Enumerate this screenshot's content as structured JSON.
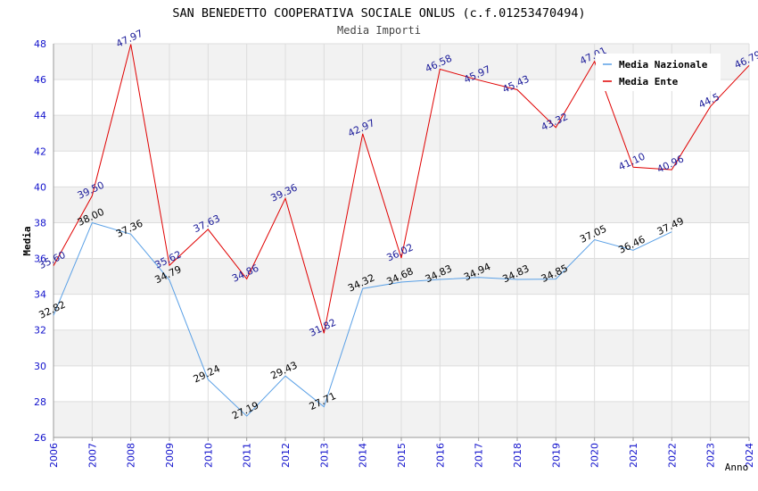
{
  "chart_data": {
    "type": "line",
    "title": "SAN BENEDETTO COOPERATIVA SOCIALE ONLUS (c.f.01253470494)",
    "subtitle": "Media Importi",
    "xlabel": "Anno",
    "ylabel": "Media",
    "ylim": [
      26,
      48
    ],
    "yticks": [
      "26",
      "28",
      "30",
      "32",
      "34",
      "36",
      "38",
      "40",
      "42",
      "44",
      "46",
      "48"
    ],
    "categories": [
      "2006",
      "2007",
      "2008",
      "2009",
      "2010",
      "2011",
      "2012",
      "2013",
      "2014",
      "2015",
      "2016",
      "2017",
      "2018",
      "2019",
      "2020",
      "2021",
      "2022",
      "2023",
      "2024"
    ],
    "legend_position": "top-right",
    "grid": true,
    "series": [
      {
        "name": "Media Nazionale",
        "color": "#5aa0e6",
        "label_color": "#000000",
        "values": [
          32.82,
          38.0,
          37.36,
          34.79,
          29.24,
          27.19,
          29.43,
          27.71,
          34.32,
          34.68,
          34.83,
          34.94,
          34.83,
          34.85,
          37.05,
          36.46,
          37.49,
          null,
          null
        ],
        "labels": [
          "32.82",
          "38.00",
          "37.36",
          "34.79",
          "29.24",
          "27.19",
          "29.43",
          "27.71",
          "34.32",
          "34.68",
          "34.83",
          "34.94",
          "34.83",
          "34.85",
          "37.05",
          "36.46",
          "37.49",
          null,
          null
        ]
      },
      {
        "name": "Media Ente",
        "color": "#e00000",
        "label_color": "#1a1a99",
        "values": [
          35.6,
          39.5,
          47.97,
          35.62,
          37.63,
          34.86,
          39.36,
          31.82,
          42.97,
          36.02,
          46.58,
          45.97,
          45.43,
          43.32,
          47.01,
          41.1,
          40.96,
          44.5,
          46.79
        ],
        "labels": [
          "35.60",
          "39.50",
          "47.97",
          "35.62",
          "37.63",
          "34.86",
          "39.36",
          "31.82",
          "42.97",
          "36.02",
          "46.58",
          "45.97",
          "45.43",
          "43.32",
          "47.01",
          "41.10",
          "40.96",
          "44.5",
          "46.79"
        ]
      }
    ]
  }
}
